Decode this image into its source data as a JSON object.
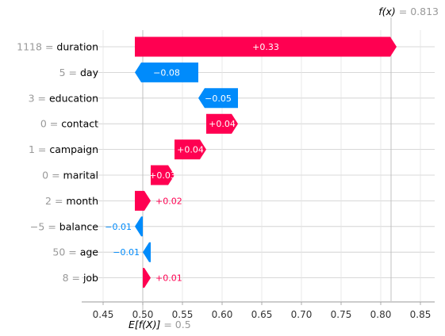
{
  "chart_data": {
    "type": "bar",
    "subtype": "shap-waterfall",
    "fx_label": "f(x)",
    "fx_value": "0.813",
    "fx_value_num": 0.813,
    "ex_label": "E[f(X)]",
    "ex_value": "0.5",
    "ex_value_num": 0.5,
    "xlim": [
      0.42,
      0.87
    ],
    "xticks": [
      0.45,
      0.5,
      0.55,
      0.6,
      0.65,
      0.7,
      0.75,
      0.8,
      0.85
    ],
    "xtick_labels": [
      "0.45",
      "0.50",
      "0.55",
      "0.60",
      "0.65",
      "0.70",
      "0.75",
      "0.80",
      "0.85"
    ],
    "grid": true,
    "colors": {
      "positive": "#ff0051",
      "negative": "#008bfb",
      "grid": "#cccccc",
      "muted": "#999999",
      "text": "#333333"
    },
    "features": [
      {
        "value": "1118",
        "name": "duration",
        "contribution": 0.33,
        "label": "+0.33",
        "label_inside": true
      },
      {
        "value": "5",
        "name": "day",
        "contribution": -0.08,
        "label": "−0.08",
        "label_inside": true
      },
      {
        "value": "3",
        "name": "education",
        "contribution": -0.05,
        "label": "−0.05",
        "label_inside": true
      },
      {
        "value": "0",
        "name": "contact",
        "contribution": 0.04,
        "label": "+0.04",
        "label_inside": true
      },
      {
        "value": "1",
        "name": "campaign",
        "contribution": 0.04,
        "label": "+0.04",
        "label_inside": true
      },
      {
        "value": "0",
        "name": "marital",
        "contribution": 0.03,
        "label": "+0.03",
        "label_inside": true
      },
      {
        "value": "2",
        "name": "month",
        "contribution": 0.02,
        "label": "+0.02",
        "label_inside": false
      },
      {
        "value": "−5",
        "name": "balance",
        "contribution": -0.01,
        "label": "−0.01",
        "label_inside": false
      },
      {
        "value": "50",
        "name": "age",
        "contribution": -0.01,
        "label": "−0.01",
        "label_inside": false
      },
      {
        "value": "8",
        "name": "job",
        "contribution": 0.01,
        "label": "+0.01",
        "label_inside": false
      }
    ]
  }
}
